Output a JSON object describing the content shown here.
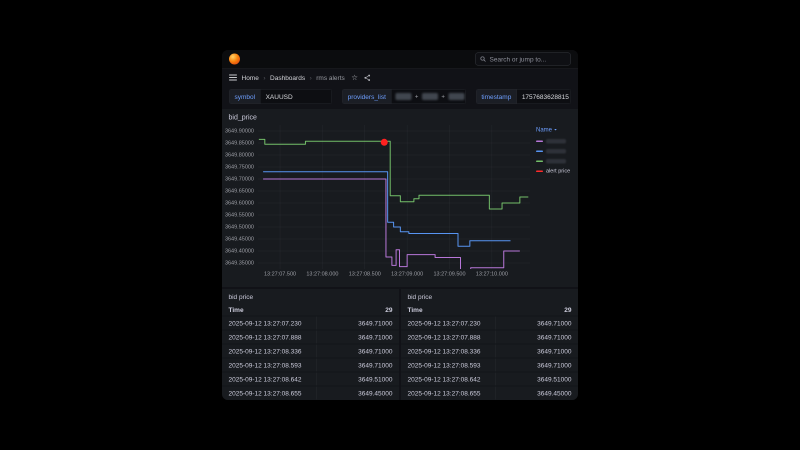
{
  "nav": {
    "search_placeholder": "Search or jump to..."
  },
  "breadcrumb": {
    "items": [
      "Home",
      "Dashboards",
      "rms alerts"
    ],
    "separator": "›"
  },
  "variables": {
    "symbol": {
      "label": "symbol",
      "value": "XAUUSD"
    },
    "providers_list": {
      "label": "providers_list",
      "selected_redacted_count": 3,
      "separator": "+"
    },
    "timestamp": {
      "label": "timestamp",
      "value": "1757683628815"
    }
  },
  "chart_panel": {
    "title": "bid_price"
  },
  "chart_data": {
    "type": "line",
    "title": "bid_price",
    "interpolation": "step-after",
    "x_unit": "seconds after 13:27:00 on 2025-09-12",
    "xlim": [
      67.24,
      70.45
    ],
    "ylim": [
      3649.325,
      3649.925
    ],
    "grid": true,
    "legend_position": "right",
    "legend": {
      "header": "Name",
      "entries": [
        {
          "color": "#b877d9",
          "label": "",
          "redacted": true
        },
        {
          "color": "#5794f2",
          "label": "",
          "redacted": true
        },
        {
          "color": "#73bf69",
          "label": "",
          "redacted": true
        },
        {
          "color": "#ff2b2b",
          "label": "alert price",
          "redacted": false
        }
      ]
    },
    "y_ticks": [
      {
        "v": 3649.9,
        "label": "3649.90000"
      },
      {
        "v": 3649.85,
        "label": "3649.85000"
      },
      {
        "v": 3649.8,
        "label": "3649.80000"
      },
      {
        "v": 3649.75,
        "label": "3649.75000"
      },
      {
        "v": 3649.7,
        "label": "3649.70000"
      },
      {
        "v": 3649.65,
        "label": "3649.65000"
      },
      {
        "v": 3649.6,
        "label": "3649.60000"
      },
      {
        "v": 3649.55,
        "label": "3649.55000"
      },
      {
        "v": 3649.5,
        "label": "3649.50000"
      },
      {
        "v": 3649.45,
        "label": "3649.45000"
      },
      {
        "v": 3649.4,
        "label": "3649.40000"
      },
      {
        "v": 3649.35,
        "label": "3649.35000"
      }
    ],
    "x_ticks": [
      {
        "t": 67.5,
        "label": "13:27:07.500"
      },
      {
        "t": 68.0,
        "label": "13:27:08.000"
      },
      {
        "t": 68.5,
        "label": "13:27:08.500"
      },
      {
        "t": 69.0,
        "label": "13:27:09.000"
      },
      {
        "t": 69.5,
        "label": "13:27:09.500"
      },
      {
        "t": 70.0,
        "label": "13:27:10.000"
      }
    ],
    "series": [
      {
        "name": "provider (redacted)",
        "color": "#b877d9",
        "points": [
          [
            67.3,
            3649.7
          ],
          [
            68.75,
            3649.375
          ],
          [
            68.82,
            3649.34
          ],
          [
            68.87,
            3649.405
          ],
          [
            68.91,
            3649.335
          ],
          [
            69.0,
            3649.385
          ],
          [
            69.33,
            3649.373
          ],
          [
            69.63,
            3649.315
          ],
          [
            69.75,
            3649.33
          ],
          [
            70.14,
            3649.4
          ],
          [
            70.33,
            3649.4
          ]
        ]
      },
      {
        "name": "provider (redacted)",
        "color": "#5794f2",
        "points": [
          [
            67.3,
            3649.73
          ],
          [
            68.77,
            3649.52
          ],
          [
            68.84,
            3649.5
          ],
          [
            68.92,
            3649.48
          ],
          [
            69.02,
            3649.473
          ],
          [
            69.6,
            3649.42
          ],
          [
            69.74,
            3649.443
          ],
          [
            70.22,
            3649.443
          ]
        ]
      },
      {
        "name": "provider (redacted)",
        "color": "#73bf69",
        "points": [
          [
            67.25,
            3649.865
          ],
          [
            67.32,
            3649.845
          ],
          [
            67.8,
            3649.857
          ],
          [
            68.8,
            3649.63
          ],
          [
            68.92,
            3649.605
          ],
          [
            69.08,
            3649.618
          ],
          [
            69.14,
            3649.632
          ],
          [
            69.97,
            3649.575
          ],
          [
            70.12,
            3649.6
          ],
          [
            70.33,
            3649.625
          ],
          [
            70.43,
            3649.625
          ]
        ]
      }
    ],
    "alert_point": {
      "t": 68.73,
      "v": 3649.853,
      "color": "#ff2120",
      "label": "alert price"
    }
  },
  "tables": [
    {
      "title": "bid price",
      "columns": [
        "Time",
        "29"
      ],
      "rows": [
        [
          "2025-09-12 13:27:07.230",
          "3649.71000"
        ],
        [
          "2025-09-12 13:27:07.888",
          "3649.71000"
        ],
        [
          "2025-09-12 13:27:08.336",
          "3649.71000"
        ],
        [
          "2025-09-12 13:27:08.593",
          "3649.71000"
        ],
        [
          "2025-09-12 13:27:08.642",
          "3649.51000"
        ],
        [
          "2025-09-12 13:27:08.655",
          "3649.45000"
        ]
      ]
    },
    {
      "title": "bid price",
      "columns": [
        "Time",
        "29"
      ],
      "rows": [
        [
          "2025-09-12 13:27:07.230",
          "3649.71000"
        ],
        [
          "2025-09-12 13:27:07.888",
          "3649.71000"
        ],
        [
          "2025-09-12 13:27:08.336",
          "3649.71000"
        ],
        [
          "2025-09-12 13:27:08.593",
          "3649.71000"
        ],
        [
          "2025-09-12 13:27:08.642",
          "3649.51000"
        ],
        [
          "2025-09-12 13:27:08.655",
          "3649.45000"
        ]
      ]
    }
  ],
  "colors": {
    "page_bg": "#000000",
    "canvas_bg": "#111217",
    "panel_bg": "#181b1f",
    "nav_bg": "#0b0c0e",
    "text_primary": "#ccccdc",
    "text_secondary": "#9d9fa6",
    "link_blue": "#6e9fff",
    "series_green": "#73bf69",
    "series_blue": "#5794f2",
    "series_purple": "#b877d9",
    "alert_red": "#ff2120"
  }
}
